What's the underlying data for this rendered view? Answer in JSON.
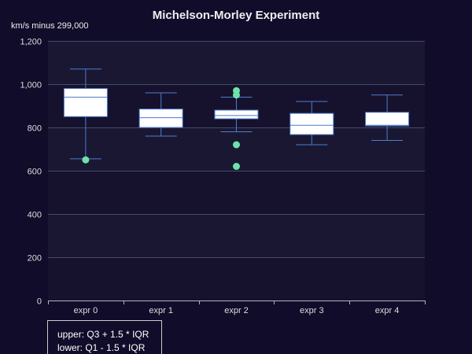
{
  "chart_data": {
    "type": "boxplot",
    "title": "Michelson-Morley Experiment",
    "ylabel": "km/s minus 299,000",
    "ylim": [
      0,
      1200
    ],
    "yticks": [
      0,
      200,
      400,
      600,
      800,
      1000,
      1200
    ],
    "ytick_labels": [
      "0",
      "200",
      "400",
      "600",
      "800",
      "1,000",
      "1,200"
    ],
    "categories": [
      "expr 0",
      "expr 1",
      "expr 2",
      "expr 3",
      "expr 4"
    ],
    "boxes": [
      {
        "category": "expr 0",
        "low": 655,
        "q1": 850,
        "median": 940,
        "q3": 980,
        "high": 1070
      },
      {
        "category": "expr 1",
        "low": 760,
        "q1": 800,
        "median": 845,
        "q3": 885,
        "high": 960
      },
      {
        "category": "expr 2",
        "low": 780,
        "q1": 840,
        "median": 855,
        "q3": 880,
        "high": 940
      },
      {
        "category": "expr 3",
        "low": 720,
        "q1": 767,
        "median": 810,
        "q3": 865,
        "high": 920
      },
      {
        "category": "expr 4",
        "low": 740,
        "q1": 807,
        "median": 810,
        "q3": 870,
        "high": 950
      }
    ],
    "outliers": [
      {
        "category": "expr 0",
        "value": 650
      },
      {
        "category": "expr 2",
        "value": 970
      },
      {
        "category": "expr 2",
        "value": 950
      },
      {
        "category": "expr 2",
        "value": 720
      },
      {
        "category": "expr 2",
        "value": 620
      }
    ],
    "grid": true,
    "colors": {
      "background": "#100c2a",
      "box_fill": "#ffffff",
      "box_stroke": "#4e7ccf",
      "outlier": "#6ee2a9",
      "grid": "#444a66",
      "axis": "#b0b0c8",
      "band_odd": "#1a1733",
      "band_even": "#16122d"
    },
    "note": [
      "upper: Q3 + 1.5 * IQR",
      "lower: Q1 - 1.5 * IQR"
    ]
  }
}
